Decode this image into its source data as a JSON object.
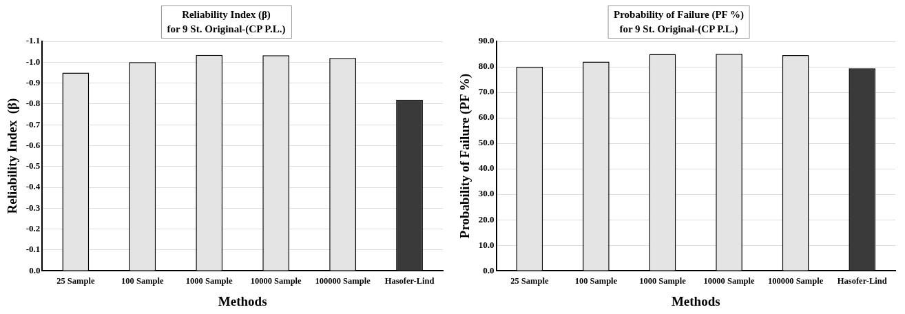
{
  "chart_data": [
    {
      "type": "bar",
      "title": "Reliability Index  (β)",
      "subtitle": "for 9 St. Original-(CP P.L.)",
      "xlabel": "Methods",
      "ylabel": "Reliability Index  (β)",
      "categories": [
        "25 Sample",
        "100 Sample",
        "1000 Sample",
        "10000 Sample",
        "100000 Sample",
        "Hasofer-Lind"
      ],
      "values": [
        -0.95,
        -1.0,
        -1.035,
        -1.033,
        -1.02,
        -0.82
      ],
      "colors": [
        "#e4e4e4",
        "#e4e4e4",
        "#e4e4e4",
        "#e4e4e4",
        "#e4e4e4",
        "#3a3a3a"
      ],
      "ylim": [
        0,
        -1.1
      ],
      "yticks": [
        {
          "value": 0,
          "label": "0.0"
        },
        {
          "value": -0.1,
          "label": "-0.1"
        },
        {
          "value": -0.2,
          "label": "-0.2"
        },
        {
          "value": -0.3,
          "label": "-0.3"
        },
        {
          "value": -0.4,
          "label": "-0.4"
        },
        {
          "value": -0.5,
          "label": "-0.5"
        },
        {
          "value": -0.6,
          "label": "-0.6"
        },
        {
          "value": -0.7,
          "label": "-0.7"
        },
        {
          "value": -0.8,
          "label": "-0.8"
        },
        {
          "value": -0.9,
          "label": "-0.9"
        },
        {
          "value": -1.0,
          "label": "-1.0"
        },
        {
          "value": -1.1,
          "label": "-1.1"
        }
      ],
      "grid": "y",
      "legend": false
    },
    {
      "type": "bar",
      "title": "Probability of Failure  (PF %)",
      "subtitle": "for 9 St. Original-(CP P.L.)",
      "xlabel": "Methods",
      "ylabel": "Probability of Failure (PF %)",
      "categories": [
        "25 Sample",
        "100 Sample",
        "1000 Sample",
        "10000 Sample",
        "100000 Sample",
        "Hasofer-Lind"
      ],
      "values": [
        80.0,
        82.0,
        85.0,
        85.1,
        84.6,
        79.4
      ],
      "colors": [
        "#e4e4e4",
        "#e4e4e4",
        "#e4e4e4",
        "#e4e4e4",
        "#e4e4e4",
        "#3a3a3a"
      ],
      "ylim": [
        0,
        90
      ],
      "yticks": [
        {
          "value": 0,
          "label": "0.0"
        },
        {
          "value": 10,
          "label": "10.0"
        },
        {
          "value": 20,
          "label": "20.0"
        },
        {
          "value": 30,
          "label": "30.0"
        },
        {
          "value": 40,
          "label": "40.0"
        },
        {
          "value": 50,
          "label": "50.0"
        },
        {
          "value": 60,
          "label": "60.0"
        },
        {
          "value": 70,
          "label": "70.0"
        },
        {
          "value": 80,
          "label": "80.0"
        },
        {
          "value": 90,
          "label": "90.0"
        }
      ],
      "grid": "y",
      "legend": false
    }
  ]
}
